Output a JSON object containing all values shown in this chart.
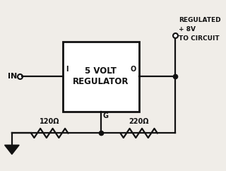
{
  "bg_color": "#f0ede8",
  "box_label_line1": "5 VOLT",
  "box_label_line2": "REGULATOR",
  "text_color": "#111111",
  "line_color": "#111111",
  "title_lines": [
    "REGULATED",
    "+ 8V",
    "TO CIRCUIT"
  ],
  "label_IN": "IN",
  "label_I": "I",
  "label_O": "O",
  "label_G": "G",
  "label_R1": "120Ω",
  "label_R2": "220Ω"
}
